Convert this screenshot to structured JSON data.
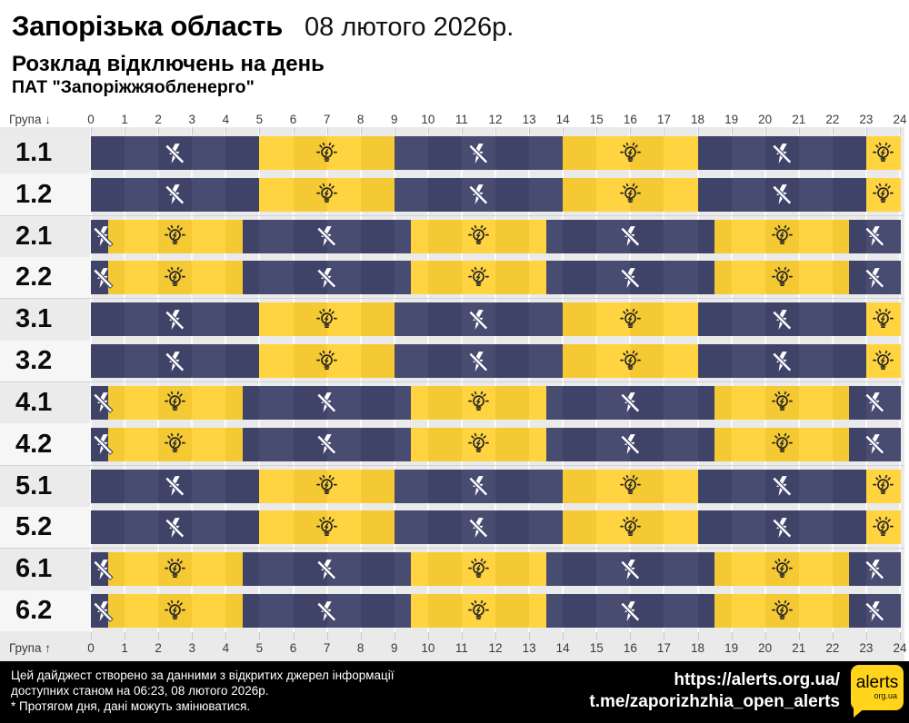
{
  "header": {
    "region": "Запорізька область",
    "date": "08 лютого 2026р.",
    "title": "Розклад відключень на день",
    "company": "ПАТ \"Запоріжжяобленерго\""
  },
  "axis": {
    "group_top": "Група ↓",
    "group_bottom": "Група ↑"
  },
  "chart_data": {
    "type": "heatmap",
    "x_range": [
      0,
      24
    ],
    "x_ticks": [
      0,
      1,
      2,
      3,
      4,
      5,
      6,
      7,
      8,
      9,
      10,
      11,
      12,
      13,
      14,
      15,
      16,
      17,
      18,
      19,
      20,
      21,
      22,
      23,
      24
    ],
    "states": {
      "off": {
        "icon": "power-off-icon",
        "meaning": "відключення"
      },
      "on": {
        "icon": "lightbulb-icon",
        "meaning": "світло"
      }
    },
    "groups": [
      {
        "label": "1.1",
        "segments": [
          {
            "state": "off",
            "from": 0,
            "to": 5
          },
          {
            "state": "on",
            "from": 5,
            "to": 9
          },
          {
            "state": "off",
            "from": 9,
            "to": 14
          },
          {
            "state": "on",
            "from": 14,
            "to": 18
          },
          {
            "state": "off",
            "from": 18,
            "to": 23
          },
          {
            "state": "on",
            "from": 23,
            "to": 24
          }
        ]
      },
      {
        "label": "1.2",
        "segments": [
          {
            "state": "off",
            "from": 0,
            "to": 5
          },
          {
            "state": "on",
            "from": 5,
            "to": 9
          },
          {
            "state": "off",
            "from": 9,
            "to": 14
          },
          {
            "state": "on",
            "from": 14,
            "to": 18
          },
          {
            "state": "off",
            "from": 18,
            "to": 23
          },
          {
            "state": "on",
            "from": 23,
            "to": 24
          }
        ]
      },
      {
        "label": "2.1",
        "segments": [
          {
            "state": "off",
            "from": 0,
            "to": 0.5
          },
          {
            "state": "on",
            "from": 0.5,
            "to": 4.5
          },
          {
            "state": "off",
            "from": 4.5,
            "to": 9.5
          },
          {
            "state": "on",
            "from": 9.5,
            "to": 13.5
          },
          {
            "state": "off",
            "from": 13.5,
            "to": 18.5
          },
          {
            "state": "on",
            "from": 18.5,
            "to": 22.5
          },
          {
            "state": "off",
            "from": 22.5,
            "to": 24
          }
        ]
      },
      {
        "label": "2.2",
        "segments": [
          {
            "state": "off",
            "from": 0,
            "to": 0.5
          },
          {
            "state": "on",
            "from": 0.5,
            "to": 4.5
          },
          {
            "state": "off",
            "from": 4.5,
            "to": 9.5
          },
          {
            "state": "on",
            "from": 9.5,
            "to": 13.5
          },
          {
            "state": "off",
            "from": 13.5,
            "to": 18.5
          },
          {
            "state": "on",
            "from": 18.5,
            "to": 22.5
          },
          {
            "state": "off",
            "from": 22.5,
            "to": 24
          }
        ]
      },
      {
        "label": "3.1",
        "segments": [
          {
            "state": "off",
            "from": 0,
            "to": 5
          },
          {
            "state": "on",
            "from": 5,
            "to": 9
          },
          {
            "state": "off",
            "from": 9,
            "to": 14
          },
          {
            "state": "on",
            "from": 14,
            "to": 18
          },
          {
            "state": "off",
            "from": 18,
            "to": 23
          },
          {
            "state": "on",
            "from": 23,
            "to": 24
          }
        ]
      },
      {
        "label": "3.2",
        "segments": [
          {
            "state": "off",
            "from": 0,
            "to": 5
          },
          {
            "state": "on",
            "from": 5,
            "to": 9
          },
          {
            "state": "off",
            "from": 9,
            "to": 14
          },
          {
            "state": "on",
            "from": 14,
            "to": 18
          },
          {
            "state": "off",
            "from": 18,
            "to": 23
          },
          {
            "state": "on",
            "from": 23,
            "to": 24
          }
        ]
      },
      {
        "label": "4.1",
        "segments": [
          {
            "state": "off",
            "from": 0,
            "to": 0.5
          },
          {
            "state": "on",
            "from": 0.5,
            "to": 4.5
          },
          {
            "state": "off",
            "from": 4.5,
            "to": 9.5
          },
          {
            "state": "on",
            "from": 9.5,
            "to": 13.5
          },
          {
            "state": "off",
            "from": 13.5,
            "to": 18.5
          },
          {
            "state": "on",
            "from": 18.5,
            "to": 22.5
          },
          {
            "state": "off",
            "from": 22.5,
            "to": 24
          }
        ]
      },
      {
        "label": "4.2",
        "segments": [
          {
            "state": "off",
            "from": 0,
            "to": 0.5
          },
          {
            "state": "on",
            "from": 0.5,
            "to": 4.5
          },
          {
            "state": "off",
            "from": 4.5,
            "to": 9.5
          },
          {
            "state": "on",
            "from": 9.5,
            "to": 13.5
          },
          {
            "state": "off",
            "from": 13.5,
            "to": 18.5
          },
          {
            "state": "on",
            "from": 18.5,
            "to": 22.5
          },
          {
            "state": "off",
            "from": 22.5,
            "to": 24
          }
        ]
      },
      {
        "label": "5.1",
        "segments": [
          {
            "state": "off",
            "from": 0,
            "to": 5
          },
          {
            "state": "on",
            "from": 5,
            "to": 9
          },
          {
            "state": "off",
            "from": 9,
            "to": 14
          },
          {
            "state": "on",
            "from": 14,
            "to": 18
          },
          {
            "state": "off",
            "from": 18,
            "to": 23
          },
          {
            "state": "on",
            "from": 23,
            "to": 24
          }
        ]
      },
      {
        "label": "5.2",
        "segments": [
          {
            "state": "off",
            "from": 0,
            "to": 5
          },
          {
            "state": "on",
            "from": 5,
            "to": 9
          },
          {
            "state": "off",
            "from": 9,
            "to": 14
          },
          {
            "state": "on",
            "from": 14,
            "to": 18
          },
          {
            "state": "off",
            "from": 18,
            "to": 23
          },
          {
            "state": "on",
            "from": 23,
            "to": 24
          }
        ]
      },
      {
        "label": "6.1",
        "segments": [
          {
            "state": "off",
            "from": 0,
            "to": 0.5
          },
          {
            "state": "on",
            "from": 0.5,
            "to": 4.5
          },
          {
            "state": "off",
            "from": 4.5,
            "to": 9.5
          },
          {
            "state": "on",
            "from": 9.5,
            "to": 13.5
          },
          {
            "state": "off",
            "from": 13.5,
            "to": 18.5
          },
          {
            "state": "on",
            "from": 18.5,
            "to": 22.5
          },
          {
            "state": "off",
            "from": 22.5,
            "to": 24
          }
        ]
      },
      {
        "label": "6.2",
        "segments": [
          {
            "state": "off",
            "from": 0,
            "to": 0.5
          },
          {
            "state": "on",
            "from": 0.5,
            "to": 4.5
          },
          {
            "state": "off",
            "from": 4.5,
            "to": 9.5
          },
          {
            "state": "on",
            "from": 9.5,
            "to": 13.5
          },
          {
            "state": "off",
            "from": 13.5,
            "to": 18.5
          },
          {
            "state": "on",
            "from": 18.5,
            "to": 22.5
          },
          {
            "state": "off",
            "from": 22.5,
            "to": 24
          }
        ]
      }
    ]
  },
  "colors": {
    "off_even": "#3e4367",
    "off_odd": "#474c70",
    "on_even": "#f4c933",
    "on_odd": "#ffd440",
    "band_bg": "#eaeaea",
    "label_bg_first": "#ebebeb",
    "label_bg_second": "#f6f6f6",
    "footer_bg": "#000000",
    "logo_bg": "#ffd41a"
  },
  "footer": {
    "note_lines": [
      "Цей дайджест створено за данними з відкритих джерел інформації",
      "доступних станом на 06:23, 08 лютого 2026р.",
      "* Протягом дня, дані можуть змінюватися."
    ],
    "site_link": "https://alerts.org.ua/",
    "telegram_link": "t.me/zaporizhzhia_open_alerts",
    "logo": {
      "text": "alerts",
      "sub": "org.ua"
    }
  }
}
